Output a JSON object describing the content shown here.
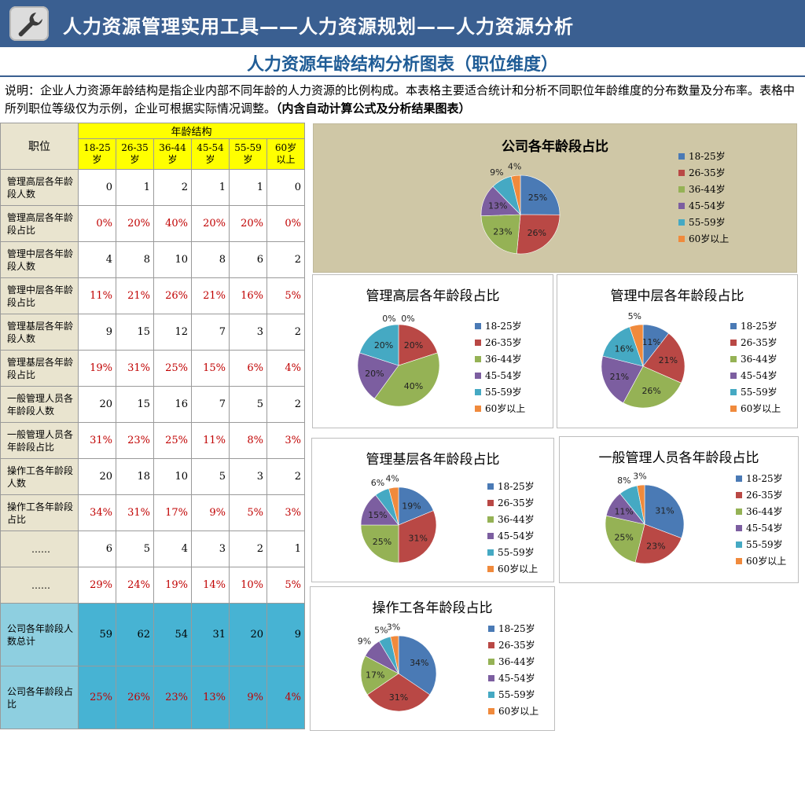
{
  "header": {
    "title": "人力资源管理实用工具——人力资源规划——人力资源分析"
  },
  "subtitle": "人力资源年龄结构分析图表（职位维度）",
  "description": {
    "text": "说明：企业人力资源年龄结构是指企业内部不同年龄的人力资源的比例构成。本表格主要适合统计和分析不同职位年龄维度的分布数量及分布率。表格中所列职位等级仅为示例，企业可根据实际情况调整。",
    "bold": "（内含自动计算公式及分析结果图表）"
  },
  "table": {
    "position_header": "职位",
    "group_header": "年龄结构",
    "age_headers": [
      "18-25\n岁",
      "26-35\n岁",
      "36-44\n岁",
      "45-54\n岁",
      "55-59\n岁",
      "60岁\n以上"
    ],
    "rows": [
      {
        "label": "管理高层各年龄段人数",
        "type": "num",
        "values": [
          "0",
          "1",
          "2",
          "1",
          "1",
          "0"
        ]
      },
      {
        "label": "管理高层各年龄段占比",
        "type": "pct",
        "values": [
          "0%",
          "20%",
          "40%",
          "20%",
          "20%",
          "0%"
        ]
      },
      {
        "label": "管理中层各年龄段人数",
        "type": "num",
        "values": [
          "4",
          "8",
          "10",
          "8",
          "6",
          "2"
        ]
      },
      {
        "label": "管理中层各年龄段占比",
        "type": "pct",
        "values": [
          "11%",
          "21%",
          "26%",
          "21%",
          "16%",
          "5%"
        ]
      },
      {
        "label": "管理基层各年龄段人数",
        "type": "num",
        "values": [
          "9",
          "15",
          "12",
          "7",
          "3",
          "2"
        ]
      },
      {
        "label": "管理基层各年龄段占比",
        "type": "pct",
        "values": [
          "19%",
          "31%",
          "25%",
          "15%",
          "6%",
          "4%"
        ]
      },
      {
        "label": "一般管理人员各年龄段人数",
        "type": "num",
        "values": [
          "20",
          "15",
          "16",
          "7",
          "5",
          "2"
        ]
      },
      {
        "label": "一般管理人员各年龄段占比",
        "type": "pct",
        "values": [
          "31%",
          "23%",
          "25%",
          "11%",
          "8%",
          "3%"
        ]
      },
      {
        "label": "操作工各年龄段人数",
        "type": "num",
        "values": [
          "20",
          "18",
          "10",
          "5",
          "3",
          "2"
        ]
      },
      {
        "label": "操作工各年龄段占比",
        "type": "pct",
        "values": [
          "34%",
          "31%",
          "17%",
          "9%",
          "5%",
          "3%"
        ]
      },
      {
        "label": "……",
        "type": "num",
        "values": [
          "6",
          "5",
          "4",
          "3",
          "2",
          "1"
        ]
      },
      {
        "label": "……",
        "type": "pct",
        "values": [
          "29%",
          "24%",
          "19%",
          "14%",
          "10%",
          "5%"
        ]
      }
    ],
    "total_rows": [
      {
        "label": "公司各年龄段人数总计",
        "type": "num",
        "values": [
          "59",
          "62",
          "54",
          "31",
          "20",
          "9"
        ]
      },
      {
        "label": "公司各年龄段占比",
        "type": "pct",
        "values": [
          "25%",
          "26%",
          "23%",
          "13%",
          "9%",
          "4%"
        ]
      }
    ]
  },
  "colors": {
    "s1": "#4a7ab5",
    "s2": "#b94845",
    "s3": "#95b255",
    "s4": "#7c5ea0",
    "s5": "#45a9c3",
    "s6": "#f08a3c"
  },
  "chart_data": [
    {
      "type": "pie",
      "title": "公司各年龄段占比",
      "categories": [
        "18-25岁",
        "26-35岁",
        "36-44岁",
        "45-54岁",
        "55-59岁",
        "60岁以上"
      ],
      "values": [
        59,
        62,
        54,
        31,
        20,
        9
      ],
      "labels": [
        "25%",
        "26%",
        "23%",
        "13%",
        "9%",
        "4%"
      ]
    },
    {
      "type": "pie",
      "title": "管理高层各年龄段占比",
      "categories": [
        "18-25岁",
        "26-35岁",
        "36-44岁",
        "45-54岁",
        "55-59岁",
        "60岁以上"
      ],
      "values": [
        0,
        1,
        2,
        1,
        1,
        0
      ],
      "labels": [
        "0%",
        "20%",
        "40%",
        "20%",
        "20%",
        "0%"
      ]
    },
    {
      "type": "pie",
      "title": "管理中层各年龄段占比",
      "categories": [
        "18-25岁",
        "26-35岁",
        "36-44岁",
        "45-54岁",
        "55-59岁",
        "60岁以上"
      ],
      "values": [
        4,
        8,
        10,
        8,
        6,
        2
      ],
      "labels": [
        "11%",
        "21%",
        "26%",
        "21%",
        "16%",
        "5%"
      ]
    },
    {
      "type": "pie",
      "title": "管理基层各年龄段占比",
      "categories": [
        "18-25岁",
        "26-35岁",
        "36-44岁",
        "45-54岁",
        "55-59岁",
        "60岁以上"
      ],
      "values": [
        9,
        15,
        12,
        7,
        3,
        2
      ],
      "labels": [
        "19%",
        "31%",
        "25%",
        "15%",
        "6%",
        "4%"
      ]
    },
    {
      "type": "pie",
      "title": "一般管理人员各年龄段占比",
      "categories": [
        "18-25岁",
        "26-35岁",
        "36-44岁",
        "45-54岁",
        "55-59岁",
        "60岁以上"
      ],
      "values": [
        20,
        15,
        16,
        7,
        5,
        2
      ],
      "labels": [
        "31%",
        "23%",
        "25%",
        "11%",
        "8%",
        "3%"
      ]
    },
    {
      "type": "pie",
      "title": "操作工各年龄段占比",
      "categories": [
        "18-25岁",
        "26-35岁",
        "36-44岁",
        "45-54岁",
        "55-59岁",
        "60岁以上"
      ],
      "values": [
        20,
        18,
        10,
        5,
        3,
        2
      ],
      "labels": [
        "34%",
        "31%",
        "17%",
        "9%",
        "5%",
        "3%"
      ]
    }
  ]
}
